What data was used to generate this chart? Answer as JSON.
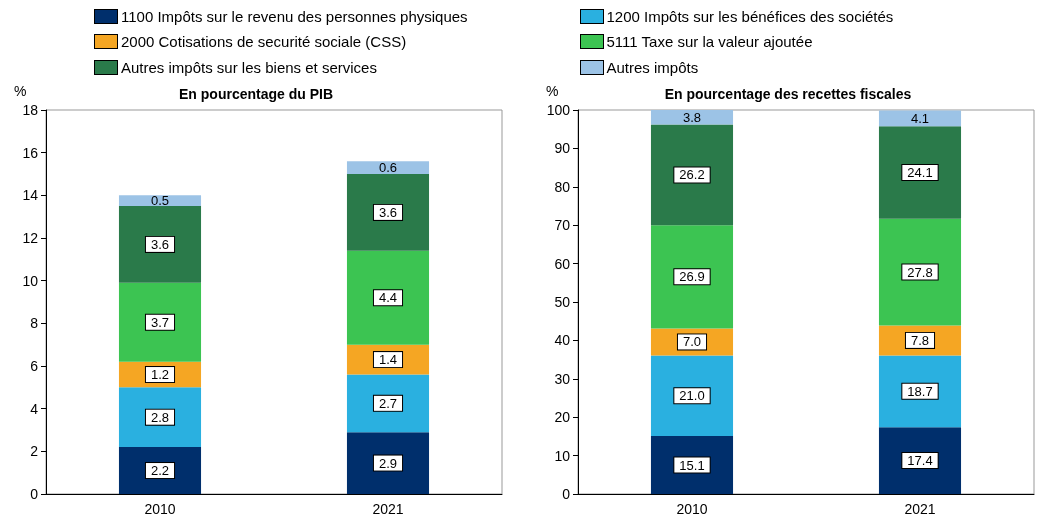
{
  "chart_data": [
    {
      "type": "bar",
      "title": "En pourcentage du PIB",
      "ylabel": "%",
      "categories": [
        "2010",
        "2021"
      ],
      "stacked": true,
      "ylim": [
        0,
        18
      ],
      "yticks": [
        0,
        2,
        4,
        6,
        8,
        10,
        12,
        14,
        16,
        18
      ],
      "grid": false,
      "legend": "top",
      "series": [
        {
          "name": "1100 Impôts sur le revenu des personnes physiques",
          "color": "#002f6c",
          "values": [
            2.2,
            2.9
          ],
          "value_labels": [
            "2.2",
            "2.9"
          ]
        },
        {
          "name": "1200 Impôts sur les bénéfices des sociétés",
          "color": "#2ab0e0",
          "values": [
            2.8,
            2.7
          ],
          "value_labels": [
            "2.8",
            "2.7"
          ]
        },
        {
          "name": "2000 Cotisations de securité sociale (CSS)",
          "color": "#f5a623",
          "values": [
            1.2,
            1.4
          ],
          "value_labels": [
            "1.2",
            "1.4"
          ]
        },
        {
          "name": "5111 Taxe sur la valeur ajoutée",
          "color": "#3cc452",
          "values": [
            3.7,
            4.4
          ],
          "value_labels": [
            "3.7",
            "4.4"
          ]
        },
        {
          "name": "Autres impôts sur les biens et services",
          "color": "#2a7a4a",
          "values": [
            3.6,
            3.6
          ],
          "value_labels": [
            "3.6",
            "3.6"
          ]
        },
        {
          "name": "Autres impôts",
          "color": "#9cc3e6",
          "values": [
            0.5,
            0.6
          ],
          "value_labels": [
            "0.5",
            "0.6"
          ]
        }
      ]
    },
    {
      "type": "bar",
      "title": "En pourcentage des recettes fiscales",
      "ylabel": "%",
      "categories": [
        "2010",
        "2021"
      ],
      "stacked": true,
      "ylim": [
        0,
        100
      ],
      "yticks": [
        0,
        10,
        20,
        30,
        40,
        50,
        60,
        70,
        80,
        90,
        100
      ],
      "grid": false,
      "series": [
        {
          "color": "#002f6c",
          "values": [
            15.1,
            17.4
          ],
          "value_labels": [
            "15.1",
            "17.4"
          ]
        },
        {
          "color": "#2ab0e0",
          "values": [
            21.0,
            18.7
          ],
          "value_labels": [
            "21.0",
            "18.7"
          ]
        },
        {
          "color": "#f5a623",
          "values": [
            7.0,
            7.8
          ],
          "value_labels": [
            "7.0",
            "7.8"
          ]
        },
        {
          "color": "#3cc452",
          "values": [
            26.9,
            27.8
          ],
          "value_labels": [
            "26.9",
            "27.8"
          ]
        },
        {
          "color": "#2a7a4a",
          "values": [
            26.2,
            24.1
          ],
          "value_labels": [
            "26.2",
            "24.1"
          ]
        },
        {
          "color": "#9cc3e6",
          "values": [
            3.8,
            4.1
          ],
          "value_labels": [
            "3.8",
            "4.1"
          ]
        }
      ]
    }
  ]
}
